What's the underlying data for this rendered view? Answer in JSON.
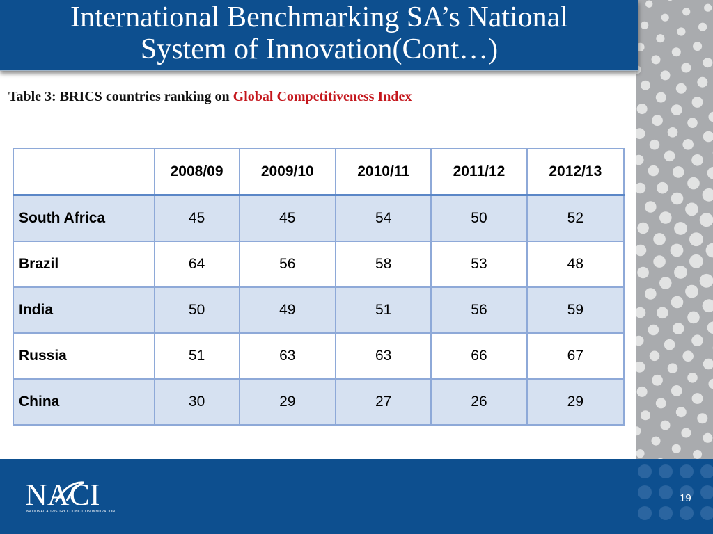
{
  "slide": {
    "title_line1": "International Benchmarking SA’s National",
    "title_line2": "System of Innovation(Cont…)",
    "subtitle_prefix": "Table 3: BRICS countries ranking on ",
    "subtitle_highlight": "Global Competitiveness Index",
    "page_number": "19"
  },
  "table": {
    "corner": "",
    "columns": [
      "2008/09",
      "2009/10",
      "2010/11",
      "2011/12",
      "2012/13"
    ],
    "rows": [
      {
        "country": "South Africa",
        "values": [
          "45",
          "45",
          "54",
          "50",
          "52"
        ]
      },
      {
        "country": "Brazil",
        "values": [
          "64",
          "56",
          "58",
          "53",
          "48"
        ]
      },
      {
        "country": "India",
        "values": [
          "50",
          "49",
          "51",
          "56",
          "59"
        ]
      },
      {
        "country": "Russia",
        "values": [
          "51",
          "63",
          "63",
          "66",
          "67"
        ]
      },
      {
        "country": "China",
        "values": [
          "30",
          "29",
          "27",
          "26",
          "29"
        ]
      }
    ]
  },
  "footer": {
    "logo_text": "NACI",
    "logo_caption": "NATIONAL ADVISORY COUNCIL ON INNOVATION"
  },
  "colors": {
    "brand_blue": "#0d4f8f",
    "highlight_red": "#c4161c",
    "row_band": "#d6e1f1"
  }
}
